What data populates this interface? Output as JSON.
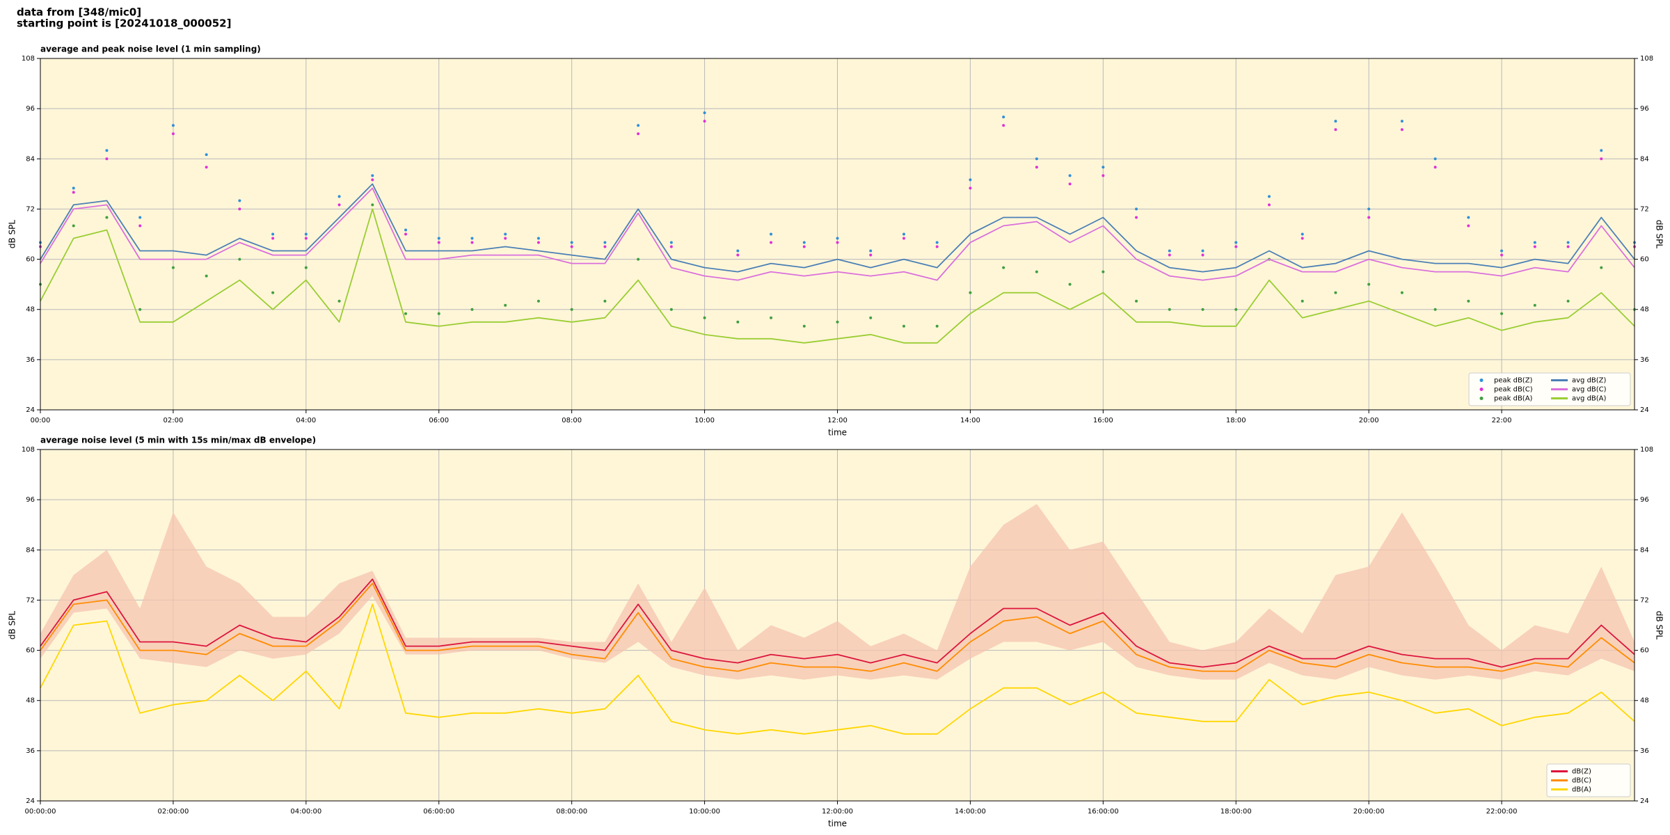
{
  "header": {
    "lines": [
      "data from [348/mic0]",
      "starting point is [20241018_000052]"
    ]
  },
  "chart_data": [
    {
      "type": "line",
      "title": "average and peak noise level (1 min sampling)",
      "xlabel": "time",
      "ylabel": "dB SPL",
      "x": [
        0,
        0.5,
        1,
        1.5,
        2,
        2.5,
        3,
        3.5,
        4,
        4.5,
        5,
        5.5,
        6,
        6.5,
        7,
        7.5,
        8,
        8.5,
        9,
        9.5,
        10,
        10.5,
        11,
        11.5,
        12,
        12.5,
        13,
        13.5,
        14,
        14.5,
        15,
        15.5,
        16,
        16.5,
        17,
        17.5,
        18,
        18.5,
        19,
        19.5,
        20,
        20.5,
        21,
        21.5,
        22,
        22.5,
        23,
        23.5,
        24
      ],
      "xlim": [
        0,
        24
      ],
      "xticks": [
        {
          "value": 0,
          "label": "00:00"
        },
        {
          "value": 2,
          "label": "02:00"
        },
        {
          "value": 4,
          "label": "04:00"
        },
        {
          "value": 6,
          "label": "06:00"
        },
        {
          "value": 8,
          "label": "08:00"
        },
        {
          "value": 10,
          "label": "10:00"
        },
        {
          "value": 12,
          "label": "12:00"
        },
        {
          "value": 14,
          "label": "14:00"
        },
        {
          "value": 16,
          "label": "16:00"
        },
        {
          "value": 18,
          "label": "18:00"
        },
        {
          "value": 20,
          "label": "20:00"
        },
        {
          "value": 22,
          "label": "22:00"
        }
      ],
      "ylim": [
        24,
        108
      ],
      "yticks": [
        24,
        36,
        48,
        60,
        72,
        84,
        96,
        108
      ],
      "grid": true,
      "legend": "lower right",
      "legend_columns": 2,
      "series": [
        {
          "name": "peak dB(Z)",
          "color": "#2f8fd8",
          "style": "dots",
          "values": [
            64,
            77,
            86,
            70,
            92,
            85,
            74,
            66,
            66,
            75,
            80,
            67,
            65,
            65,
            66,
            65,
            64,
            64,
            92,
            64,
            95,
            62,
            66,
            64,
            65,
            62,
            66,
            64,
            79,
            94,
            84,
            80,
            82,
            72,
            62,
            62,
            64,
            75,
            66,
            93,
            72,
            93,
            84,
            70,
            62,
            64,
            64,
            86,
            64
          ]
        },
        {
          "name": "peak dB(C)",
          "color": "#e030d8",
          "style": "dots",
          "values": [
            63,
            76,
            84,
            68,
            90,
            82,
            72,
            65,
            65,
            73,
            79,
            66,
            64,
            64,
            65,
            64,
            63,
            63,
            90,
            63,
            93,
            61,
            64,
            63,
            64,
            61,
            65,
            63,
            77,
            92,
            82,
            78,
            80,
            70,
            61,
            61,
            63,
            73,
            65,
            91,
            70,
            91,
            82,
            68,
            61,
            63,
            63,
            84,
            63
          ]
        },
        {
          "name": "peak dB(A)",
          "color": "#3f9f3f",
          "style": "dots",
          "values": [
            54,
            68,
            70,
            48,
            58,
            56,
            60,
            52,
            58,
            50,
            73,
            47,
            47,
            48,
            49,
            50,
            48,
            50,
            60,
            48,
            46,
            45,
            46,
            44,
            45,
            46,
            44,
            44,
            52,
            58,
            57,
            54,
            57,
            50,
            48,
            48,
            48,
            60,
            50,
            52,
            54,
            52,
            48,
            50,
            47,
            49,
            50,
            58,
            48
          ]
        },
        {
          "name": "avg dB(Z)",
          "color": "#4a7fb5",
          "style": "line",
          "values": [
            60,
            73,
            74,
            62,
            62,
            61,
            65,
            62,
            62,
            70,
            78,
            62,
            62,
            62,
            63,
            62,
            61,
            60,
            72,
            60,
            58,
            57,
            59,
            58,
            60,
            58,
            60,
            58,
            66,
            70,
            70,
            66,
            70,
            62,
            58,
            57,
            58,
            62,
            58,
            59,
            62,
            60,
            59,
            59,
            58,
            60,
            59,
            70,
            60
          ]
        },
        {
          "name": "avg dB(C)",
          "color": "#da6fdc",
          "style": "line",
          "values": [
            59,
            72,
            73,
            60,
            60,
            60,
            64,
            61,
            61,
            69,
            77,
            60,
            60,
            61,
            61,
            61,
            59,
            59,
            71,
            58,
            56,
            55,
            57,
            56,
            57,
            56,
            57,
            55,
            64,
            68,
            69,
            64,
            68,
            60,
            56,
            55,
            56,
            60,
            57,
            57,
            60,
            58,
            57,
            57,
            56,
            58,
            57,
            68,
            58
          ]
        },
        {
          "name": "avg dB(A)",
          "color": "#9acd32",
          "style": "line",
          "values": [
            50,
            65,
            67,
            45,
            45,
            50,
            55,
            48,
            55,
            45,
            72,
            45,
            44,
            45,
            45,
            46,
            45,
            46,
            55,
            44,
            42,
            41,
            41,
            40,
            41,
            42,
            40,
            40,
            47,
            52,
            52,
            48,
            52,
            45,
            45,
            44,
            44,
            55,
            46,
            48,
            50,
            47,
            44,
            46,
            43,
            45,
            46,
            52,
            44
          ]
        }
      ]
    },
    {
      "type": "line",
      "title": "average noise level (5 min with 15s min/max dB envelope)",
      "xlabel": "time",
      "ylabel": "dB SPL",
      "x": [
        0,
        0.5,
        1,
        1.5,
        2,
        2.5,
        3,
        3.5,
        4,
        4.5,
        5,
        5.5,
        6,
        6.5,
        7,
        7.5,
        8,
        8.5,
        9,
        9.5,
        10,
        10.5,
        11,
        11.5,
        12,
        12.5,
        13,
        13.5,
        14,
        14.5,
        15,
        15.5,
        16,
        16.5,
        17,
        17.5,
        18,
        18.5,
        19,
        19.5,
        20,
        20.5,
        21,
        21.5,
        22,
        22.5,
        23,
        23.5,
        24
      ],
      "xlim": [
        0,
        24
      ],
      "xticks": [
        {
          "value": 0,
          "label": "00:00:00"
        },
        {
          "value": 2,
          "label": "02:00:00"
        },
        {
          "value": 4,
          "label": "04:00:00"
        },
        {
          "value": 6,
          "label": "06:00:00"
        },
        {
          "value": 8,
          "label": "08:00:00"
        },
        {
          "value": 10,
          "label": "10:00:00"
        },
        {
          "value": 12,
          "label": "12:00:00"
        },
        {
          "value": 14,
          "label": "14:00:00"
        },
        {
          "value": 16,
          "label": "16:00:00"
        },
        {
          "value": 18,
          "label": "18:00:00"
        },
        {
          "value": 20,
          "label": "20:00:00"
        },
        {
          "value": 22,
          "label": "22:00:00"
        }
      ],
      "ylim": [
        24,
        108
      ],
      "yticks": [
        24,
        36,
        48,
        60,
        72,
        84,
        96,
        108
      ],
      "grid": true,
      "legend": "lower right",
      "legend_columns": 1,
      "envelope": {
        "color": "#f6c4b0",
        "low": [
          58,
          69,
          70,
          58,
          57,
          56,
          60,
          58,
          59,
          64,
          73,
          59,
          59,
          60,
          60,
          60,
          58,
          57,
          62,
          56,
          54,
          53,
          54,
          53,
          54,
          53,
          54,
          53,
          58,
          62,
          62,
          60,
          62,
          56,
          54,
          53,
          53,
          57,
          54,
          53,
          56,
          54,
          53,
          54,
          53,
          55,
          54,
          58,
          55
        ],
        "high": [
          64,
          78,
          84,
          70,
          93,
          80,
          76,
          68,
          68,
          76,
          79,
          63,
          63,
          63,
          63,
          63,
          62,
          62,
          76,
          62,
          75,
          60,
          66,
          63,
          67,
          61,
          64,
          60,
          80,
          90,
          95,
          84,
          86,
          74,
          62,
          60,
          62,
          70,
          64,
          78,
          80,
          93,
          80,
          66,
          60,
          66,
          64,
          80,
          62
        ]
      },
      "series": [
        {
          "name": "dB(Z)",
          "color": "#dc143c",
          "style": "line",
          "values": [
            61,
            72,
            74,
            62,
            62,
            61,
            66,
            63,
            62,
            68,
            77,
            61,
            61,
            62,
            62,
            62,
            61,
            60,
            71,
            60,
            58,
            57,
            59,
            58,
            59,
            57,
            59,
            57,
            64,
            70,
            70,
            66,
            69,
            61,
            57,
            56,
            57,
            61,
            58,
            58,
            61,
            59,
            58,
            58,
            56,
            58,
            58,
            66,
            59
          ]
        },
        {
          "name": "dB(C)",
          "color": "#ff8c00",
          "style": "line",
          "values": [
            60,
            71,
            72,
            60,
            60,
            59,
            64,
            61,
            61,
            67,
            76,
            60,
            60,
            61,
            61,
            61,
            59,
            58,
            69,
            58,
            56,
            55,
            57,
            56,
            56,
            55,
            57,
            55,
            62,
            67,
            68,
            64,
            67,
            59,
            56,
            55,
            55,
            60,
            57,
            56,
            59,
            57,
            56,
            56,
            55,
            57,
            56,
            63,
            57
          ]
        },
        {
          "name": "dB(A)",
          "color": "#ffd700",
          "style": "line",
          "values": [
            51,
            66,
            67,
            45,
            47,
            48,
            54,
            48,
            55,
            46,
            71,
            45,
            44,
            45,
            45,
            46,
            45,
            46,
            54,
            43,
            41,
            40,
            41,
            40,
            41,
            42,
            40,
            40,
            46,
            51,
            51,
            47,
            50,
            45,
            44,
            43,
            43,
            53,
            47,
            49,
            50,
            48,
            45,
            46,
            42,
            44,
            45,
            50,
            43
          ]
        }
      ]
    }
  ]
}
